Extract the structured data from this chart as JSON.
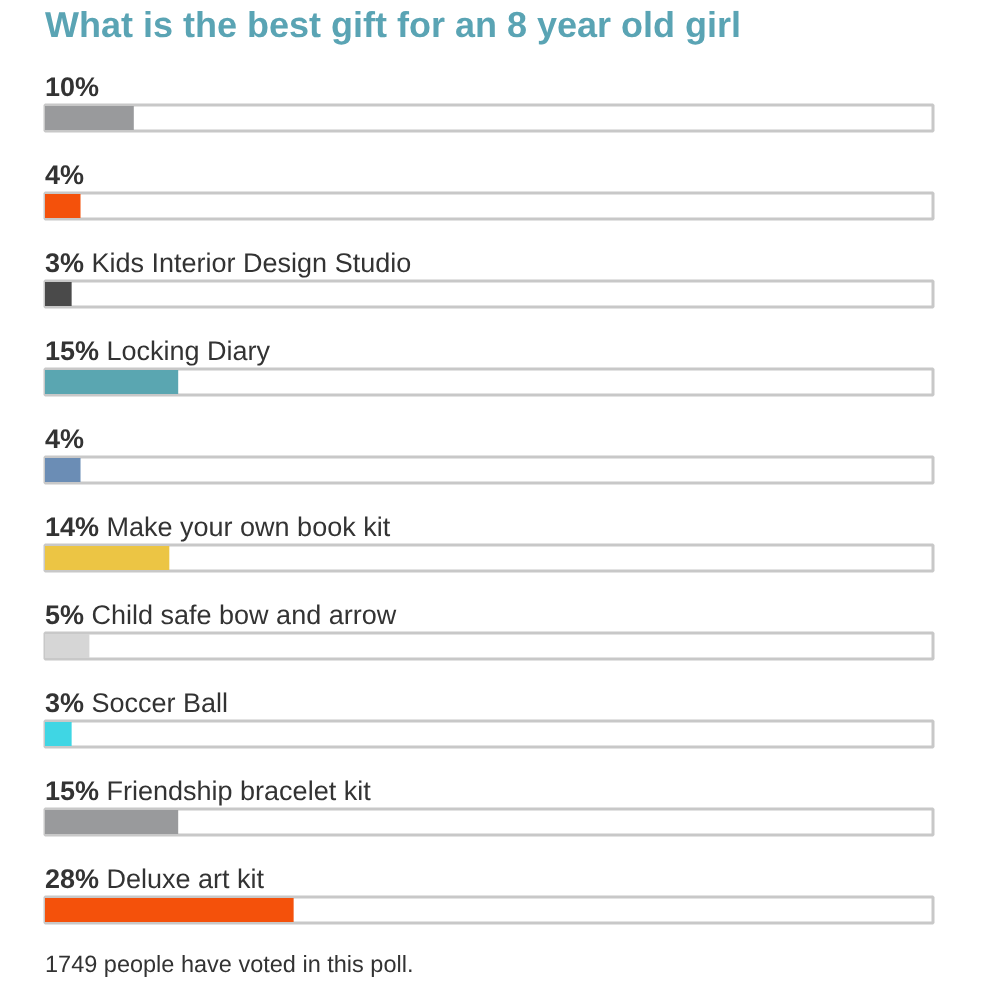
{
  "chart_data": {
    "type": "bar",
    "orientation": "horizontal",
    "title": "What is the best gift for an 8 year old girl",
    "categories": [
      null,
      null,
      "Kids Interior Design Studio",
      "Locking Diary",
      null,
      "Make your own book kit",
      "Child safe bow and arrow",
      "Soccer Ball",
      "Friendship bracelet kit",
      "Deluxe art kit"
    ],
    "values": [
      10,
      4,
      3,
      15,
      4,
      14,
      5,
      3,
      15,
      28
    ],
    "value_labels": [
      "10%",
      "4%",
      "3%",
      "15%",
      "4%",
      "14%",
      "5%",
      "3%",
      "15%",
      "28%"
    ],
    "colors": [
      "#999a9c",
      "#f4510b",
      "#4a4a4a",
      "#5aa6b1",
      "#6b8db5",
      "#ecc544",
      "#d6d6d6",
      "#3fd6e4",
      "#999a9c",
      "#f4510b"
    ],
    "xlim": [
      0,
      100
    ],
    "tick_labels": false,
    "annotations": [
      "1749 people have voted in this poll."
    ]
  }
}
